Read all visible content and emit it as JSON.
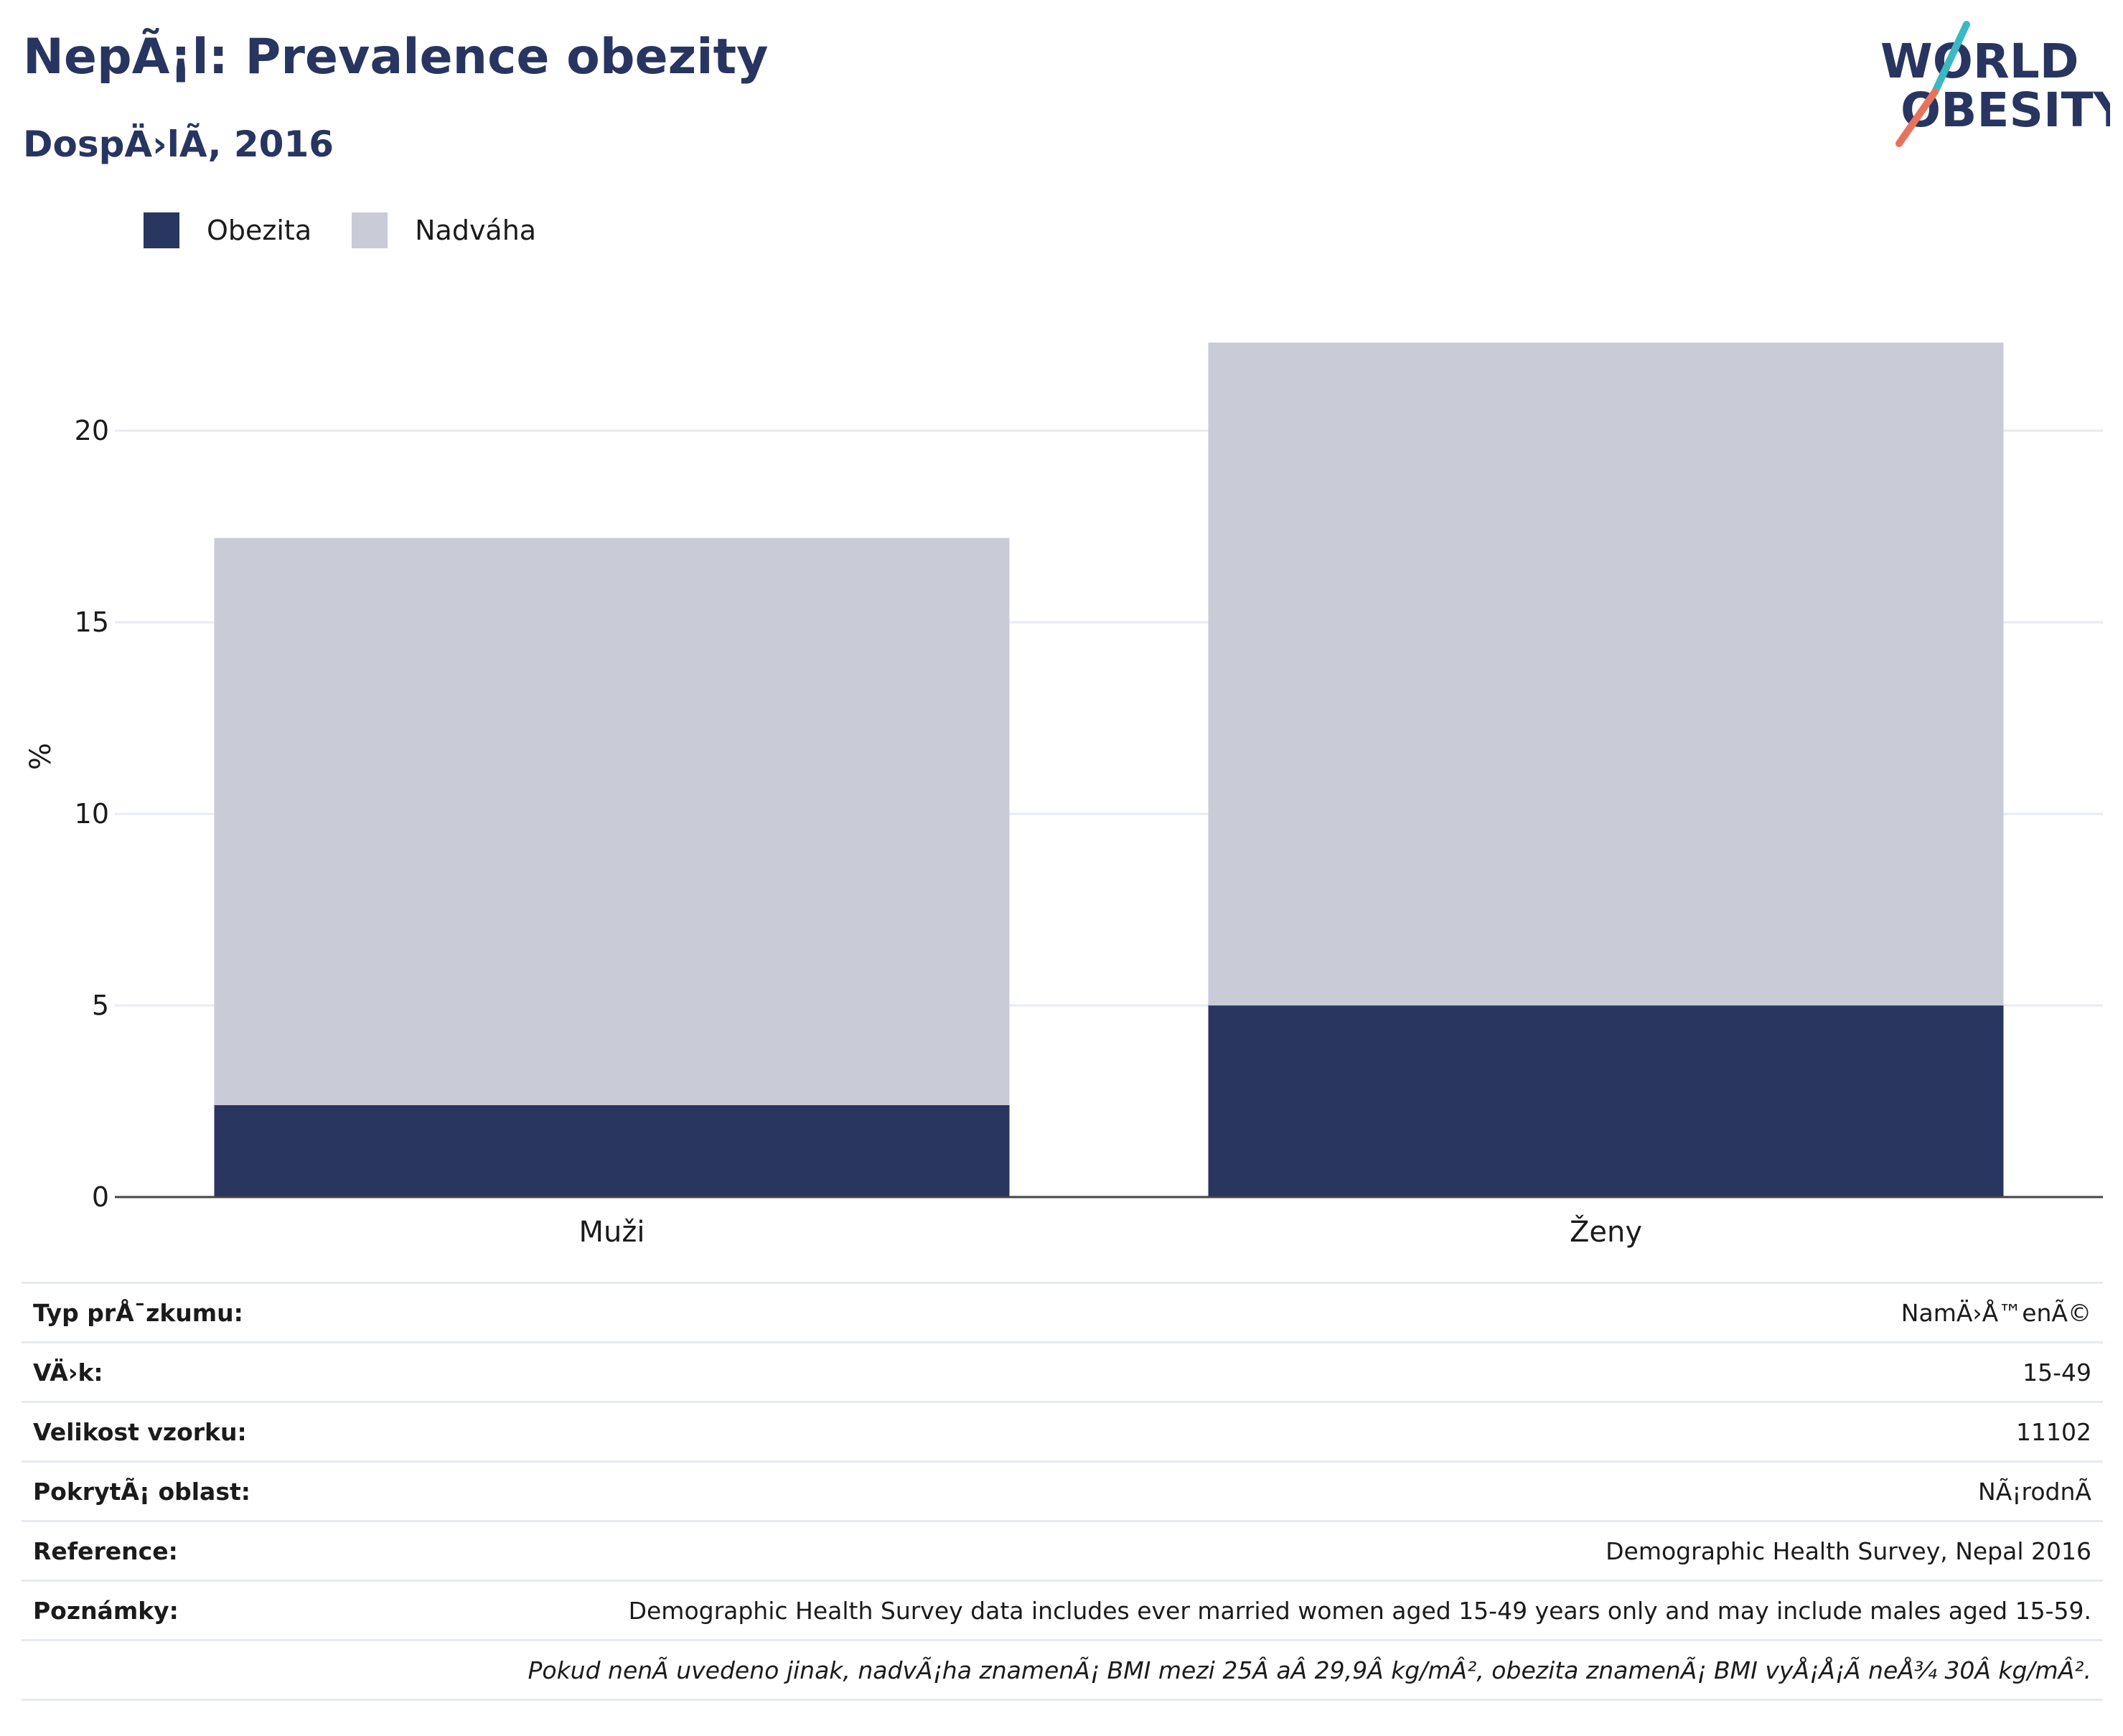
{
  "header": {
    "title": "NepÃ¡l: Prevalence obezity",
    "subtitle": "DospÄ›lÃ, 2016"
  },
  "logo": {
    "line1": "WORLD",
    "line2": "OBESITY",
    "colors": {
      "text": "#283561",
      "slash_top": "#3bb8c3",
      "slash_bottom": "#e8735d"
    }
  },
  "legend": [
    {
      "label": "Obezita",
      "color": "#29365f"
    },
    {
      "label": "Nadváha",
      "color": "#c9cbd7"
    }
  ],
  "chart_data": {
    "type": "bar",
    "stacked": true,
    "categories": [
      "Muži",
      "Ženy"
    ],
    "series": [
      {
        "name": "Obezita",
        "values": [
          2.4,
          5.0
        ],
        "color": "#29365f"
      },
      {
        "name": "Nadváha",
        "values": [
          14.8,
          17.3
        ],
        "color": "#c9cbd7"
      }
    ],
    "ylabel": "%",
    "yticks": [
      0,
      5,
      10,
      15,
      20
    ],
    "ylim": [
      0,
      23
    ],
    "grid": true,
    "legend_position": "top-left"
  },
  "info_table": [
    {
      "key": "Typ prÅ¯zkumu:",
      "value": "NamÄ›Å™enÃ©"
    },
    {
      "key": "VÄ›k:",
      "value": "15-49"
    },
    {
      "key": "Velikost vzorku:",
      "value": "11102"
    },
    {
      "key": "PokrytÃ¡ oblast:",
      "value": "NÃ¡rodnÃ"
    },
    {
      "key": "Reference:",
      "value": "Demographic Health Survey, Nepal 2016"
    },
    {
      "key": "Poznámky:",
      "value": "Demographic Health Survey data includes ever married women aged 15-49 years only and may include males aged 15-59."
    }
  ],
  "footnote": "Pokud nenÃ uvedeno jinak, nadvÃ¡ha znamenÃ¡ BMI mezi 25Â aÂ 29,9Â kg/mÂ², obezita znamenÃ¡ BMI vyÅ¡Å¡Ã neÅ¾ 30Â kg/mÂ²."
}
